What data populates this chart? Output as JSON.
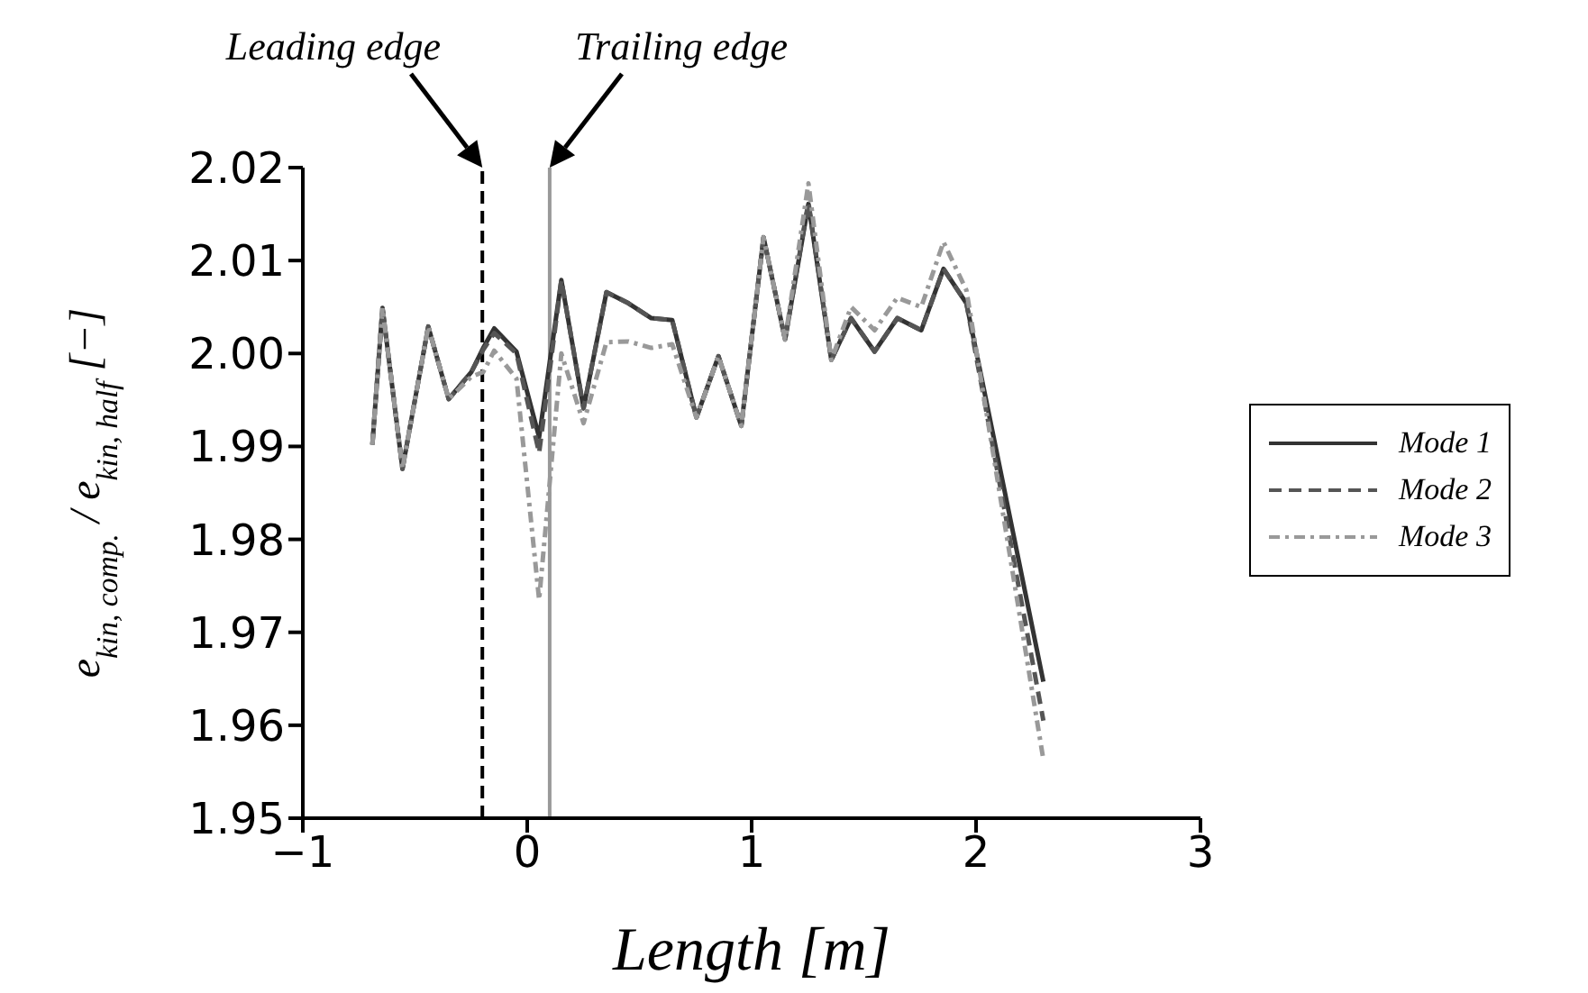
{
  "chart_data": {
    "type": "line",
    "xlabel": "Length [m]",
    "ylabel": "e$_{kin, comp.}$ / e$_{kin, half}$ [−]",
    "x": [
      -0.69,
      -0.645,
      -0.556,
      -0.441,
      -0.35,
      -0.249,
      -0.196,
      -0.147,
      -0.048,
      0.053,
      0.152,
      0.251,
      0.353,
      0.451,
      0.553,
      0.646,
      0.754,
      0.852,
      0.954,
      1.053,
      1.149,
      1.253,
      1.355,
      1.443,
      1.548,
      1.649,
      1.756,
      1.855,
      1.957,
      2.3
    ],
    "series": [
      {
        "name": "Mode 1",
        "color": "#333333",
        "line_style": "solid",
        "values": [
          1.9902,
          2.0049,
          1.9876,
          2.0029,
          1.9951,
          1.998,
          2.0006,
          2.0027,
          2.0002,
          1.991,
          2.0079,
          1.9941,
          2.0066,
          2.0054,
          2.0038,
          2.0036,
          1.9931,
          1.9997,
          1.9922,
          2.0125,
          2.0015,
          2.0161,
          1.9993,
          2.0038,
          2.0002,
          2.0038,
          2.0025,
          2.0091,
          2.0054,
          1.9647
        ]
      },
      {
        "name": "Mode 2",
        "color": "#555555",
        "line_style": "dashed",
        "values": [
          1.9902,
          2.0049,
          1.9876,
          2.0029,
          1.9951,
          1.998,
          2.0004,
          2.0022,
          2.0,
          1.9893,
          2.0079,
          1.9941,
          2.0066,
          2.0054,
          2.0038,
          2.0036,
          1.9931,
          1.9997,
          1.9922,
          2.0125,
          2.0015,
          2.0163,
          1.9993,
          2.0038,
          2.0002,
          2.0038,
          2.0025,
          2.0091,
          2.0054,
          1.9605
        ]
      },
      {
        "name": "Mode 3",
        "color": "#999999",
        "line_style": "dashdot",
        "values": [
          1.9902,
          2.0049,
          1.9876,
          2.0029,
          1.9951,
          1.9975,
          1.998,
          2.0003,
          1.9973,
          1.9735,
          2.0,
          1.9925,
          2.0012,
          2.0013,
          2.0006,
          2.001,
          1.9931,
          1.9997,
          1.9922,
          2.0125,
          2.0015,
          2.0183,
          1.9993,
          2.005,
          2.0025,
          2.006,
          2.005,
          2.012,
          2.0068,
          1.9563
        ]
      }
    ],
    "xlim": [
      -1,
      3
    ],
    "xticks": [
      -1,
      0,
      1,
      2,
      3
    ],
    "ylim": [
      1.95,
      2.02
    ],
    "yticks": [
      1.95,
      1.96,
      1.97,
      1.98,
      1.99,
      {
        "value": 2.0,
        "label": "2.00"
      },
      2.01,
      2.02
    ],
    "ref_lines": [
      {
        "axis": "x",
        "value": -0.2,
        "label": "Leading edge",
        "color": "#000000",
        "line_style": "dashed"
      },
      {
        "axis": "x",
        "value": 0.1,
        "label": "Trailing edge",
        "color": "#999999",
        "line_style": "solid"
      }
    ],
    "grid": false,
    "legend": "right",
    "marker": "none"
  }
}
